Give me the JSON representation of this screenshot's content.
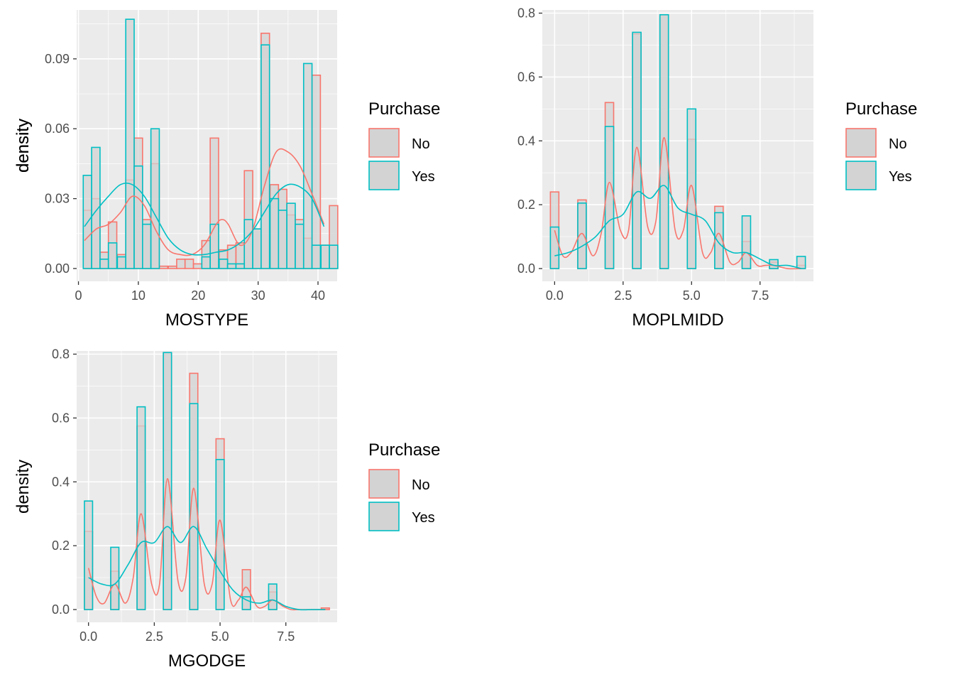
{
  "colors": {
    "no": "#F8766D",
    "yes": "#00BFC4",
    "bar_fill": "#D3D3D3",
    "panel_bg": "#EBEBEB",
    "grid": "#FFFFFF"
  },
  "legend": {
    "title": "Purchase",
    "keys": [
      {
        "label": "No",
        "color": "#F8766D"
      },
      {
        "label": "Yes",
        "color": "#00BFC4"
      }
    ]
  },
  "chart_data": [
    {
      "type": "histogram+density",
      "xlabel": "MOSTYPE",
      "ylabel": "density",
      "xlim": [
        -0.3,
        43.2
      ],
      "ylim": [
        -0.0055,
        0.111
      ],
      "xticks": [
        0,
        10,
        20,
        30,
        40
      ],
      "xtick_labels": [
        "0",
        "10",
        "20",
        "30",
        "40"
      ],
      "yticks": [
        0,
        0.03,
        0.06,
        0.09
      ],
      "ytick_labels": [
        "0.00",
        "0.03",
        "0.06",
        "0.09"
      ],
      "grid": true,
      "legend_position": "right",
      "bins": [
        1.0,
        2.83,
        4.66,
        6.49,
        8.32,
        10.15,
        11.98,
        13.81,
        15.64,
        17.47,
        19.3,
        21.13,
        22.96,
        24.79,
        26.62,
        28.45,
        30.28,
        32.11,
        33.94,
        35.77,
        37.6,
        39.43,
        41.26
      ],
      "series": [
        {
          "name": "No",
          "values": [
            0.025,
            0.03,
            0.007,
            0.02,
            0.006,
            0.038,
            0.056,
            0.021,
            0.045,
            0.001,
            0.001,
            0.004,
            0.004,
            0.002,
            0.012,
            0.056,
            0.008,
            0.01,
            0.011,
            0.042,
            0.017,
            0.101,
            0.036,
            0.034,
            0.023,
            0.021,
            0.013,
            0.083,
            0.01,
            0.027
          ],
          "bin_centers": [
            1.5,
            2.9,
            4.3,
            5.7,
            7.2,
            8.6,
            10.0,
            11.4,
            12.8,
            14.2,
            15.7,
            17.1,
            18.5,
            19.9,
            21.3,
            22.7,
            24.2,
            25.6,
            27.0,
            28.4,
            29.8,
            31.2,
            32.7,
            34.1,
            35.5,
            36.9,
            38.3,
            39.7,
            41.2,
            42.6
          ],
          "density_x": [
            1,
            3,
            5,
            7,
            9,
            11,
            13,
            15,
            17,
            19,
            21,
            23,
            24,
            25,
            27,
            29,
            31,
            33,
            35,
            37,
            39,
            41
          ],
          "density_y": [
            0.012,
            0.017,
            0.019,
            0.024,
            0.031,
            0.027,
            0.016,
            0.008,
            0.006,
            0.006,
            0.01,
            0.019,
            0.021,
            0.019,
            0.01,
            0.016,
            0.035,
            0.05,
            0.05,
            0.044,
            0.032,
            0.019
          ]
        },
        {
          "name": "Yes",
          "values": [
            0.04,
            0.052,
            0.004,
            0.011,
            0.005,
            0.107,
            0.044,
            0.019,
            0.06,
            0.0,
            0.0,
            0.0,
            0.0,
            0.0,
            0.005,
            0.019,
            0.004,
            0.002,
            0.002,
            0.021,
            0.017,
            0.096,
            0.03,
            0.025,
            0.028,
            0.019,
            0.088,
            0.01,
            0.01,
            0.01
          ],
          "bin_centers": [
            1.5,
            2.9,
            4.3,
            5.7,
            7.2,
            8.6,
            10.0,
            11.4,
            12.8,
            14.2,
            15.7,
            17.1,
            18.5,
            19.9,
            21.3,
            22.7,
            24.2,
            25.6,
            27.0,
            28.4,
            29.8,
            31.2,
            32.7,
            34.1,
            35.5,
            36.9,
            38.3,
            39.7,
            41.2,
            42.6
          ],
          "density_x": [
            1,
            3,
            5,
            7,
            9,
            11,
            13,
            15,
            17,
            19,
            21,
            23,
            25,
            27,
            29,
            31,
            33,
            35,
            37,
            39,
            41
          ],
          "density_y": [
            0.018,
            0.025,
            0.031,
            0.036,
            0.036,
            0.031,
            0.022,
            0.013,
            0.008,
            0.006,
            0.006,
            0.007,
            0.008,
            0.011,
            0.016,
            0.024,
            0.032,
            0.036,
            0.035,
            0.03,
            0.018
          ]
        }
      ]
    },
    {
      "type": "histogram+density",
      "xlabel": "MOPLMIDD",
      "ylabel": "density",
      "xlim": [
        -0.45,
        9.45
      ],
      "ylim": [
        -0.04,
        0.81
      ],
      "xticks": [
        0,
        2.5,
        5,
        7.5
      ],
      "xtick_labels": [
        "0.0",
        "2.5",
        "5.0",
        "7.5"
      ],
      "yticks": [
        0,
        0.2,
        0.4,
        0.6,
        0.8
      ],
      "ytick_labels": [
        "0.0",
        "0.2",
        "0.4",
        "0.6",
        "0.8"
      ],
      "grid": true,
      "legend_position": "right",
      "bin_width": 0.31,
      "series": [
        {
          "name": "No",
          "bin_centers": [
            0,
            1,
            2,
            3,
            4,
            5,
            6,
            7,
            8,
            9
          ],
          "values": [
            0.24,
            0.215,
            0.52,
            0.735,
            0.795,
            0.405,
            0.195,
            0.085,
            0.02,
            0.01
          ],
          "density_x": [
            0,
            0.3,
            0.6,
            1.0,
            1.4,
            1.7,
            2.0,
            2.4,
            2.7,
            3.0,
            3.4,
            3.7,
            4.0,
            4.4,
            4.7,
            5.0,
            5.4,
            5.7,
            6.0,
            6.4,
            6.7,
            7.0,
            7.4,
            7.7,
            8.0,
            8.5,
            9.0
          ],
          "density_y": [
            0.12,
            0.04,
            0.05,
            0.11,
            0.04,
            0.11,
            0.27,
            0.12,
            0.12,
            0.38,
            0.13,
            0.15,
            0.41,
            0.12,
            0.12,
            0.26,
            0.05,
            0.05,
            0.11,
            0.02,
            0.02,
            0.05,
            0.01,
            0.01,
            0.01,
            0.0,
            0.0
          ]
        },
        {
          "name": "Yes",
          "bin_centers": [
            0,
            1,
            2,
            3,
            4,
            5,
            6,
            7,
            8,
            9
          ],
          "values": [
            0.13,
            0.205,
            0.445,
            0.74,
            0.795,
            0.5,
            0.175,
            0.165,
            0.028,
            0.038
          ],
          "density_x": [
            0,
            0.5,
            1.0,
            1.5,
            2.0,
            2.5,
            3.0,
            3.5,
            4.0,
            4.5,
            5.0,
            5.5,
            6.0,
            6.5,
            7.0,
            7.5,
            8.0,
            8.5,
            9.0
          ],
          "density_y": [
            0.04,
            0.05,
            0.07,
            0.1,
            0.15,
            0.17,
            0.24,
            0.22,
            0.26,
            0.19,
            0.17,
            0.15,
            0.08,
            0.05,
            0.05,
            0.03,
            0.01,
            0.01,
            0.0
          ]
        }
      ]
    },
    {
      "type": "histogram+density",
      "xlabel": "MGODGE",
      "ylabel": "density",
      "xlim": [
        -0.45,
        9.45
      ],
      "ylim": [
        -0.04,
        0.81
      ],
      "xticks": [
        0,
        2.5,
        5,
        7.5
      ],
      "xtick_labels": [
        "0.0",
        "2.5",
        "5.0",
        "7.5"
      ],
      "yticks": [
        0,
        0.2,
        0.4,
        0.6,
        0.8
      ],
      "ytick_labels": [
        "0.0",
        "0.2",
        "0.4",
        "0.6",
        "0.8"
      ],
      "grid": true,
      "legend_position": "right",
      "bin_width": 0.31,
      "series": [
        {
          "name": "No",
          "bin_centers": [
            0,
            1,
            2,
            3,
            4,
            5,
            6,
            7,
            8,
            9
          ],
          "values": [
            0.245,
            0.12,
            0.575,
            0.805,
            0.74,
            0.535,
            0.125,
            0.055,
            0.0,
            0.005
          ],
          "density_x": [
            0,
            0.3,
            0.6,
            1.0,
            1.4,
            1.7,
            2.0,
            2.4,
            2.7,
            3.0,
            3.4,
            3.7,
            4.0,
            4.4,
            4.7,
            5.0,
            5.4,
            5.7,
            6.0,
            6.4,
            6.7,
            7.0,
            7.4,
            7.7,
            8.0,
            8.5,
            9.0
          ],
          "density_y": [
            0.13,
            0.04,
            0.02,
            0.08,
            0.02,
            0.1,
            0.3,
            0.08,
            0.08,
            0.41,
            0.09,
            0.1,
            0.38,
            0.08,
            0.08,
            0.28,
            0.03,
            0.03,
            0.07,
            0.01,
            0.01,
            0.03,
            0.01,
            0.0,
            0.0,
            0.0,
            0.0
          ]
        },
        {
          "name": "Yes",
          "bin_centers": [
            0,
            1,
            2,
            3,
            4,
            5,
            6,
            7,
            8,
            9
          ],
          "values": [
            0.34,
            0.195,
            0.635,
            0.805,
            0.645,
            0.47,
            0.04,
            0.08,
            0.0,
            0.0
          ],
          "density_x": [
            0,
            0.5,
            1.0,
            1.5,
            2.0,
            2.5,
            3.0,
            3.5,
            4.0,
            4.5,
            5.0,
            5.5,
            6.0,
            6.5,
            7.0,
            7.5,
            8.0,
            8.5,
            9.0
          ],
          "density_y": [
            0.1,
            0.08,
            0.08,
            0.14,
            0.21,
            0.21,
            0.26,
            0.21,
            0.26,
            0.19,
            0.12,
            0.06,
            0.03,
            0.02,
            0.03,
            0.01,
            0.0,
            0.0,
            0.0
          ]
        }
      ]
    }
  ]
}
